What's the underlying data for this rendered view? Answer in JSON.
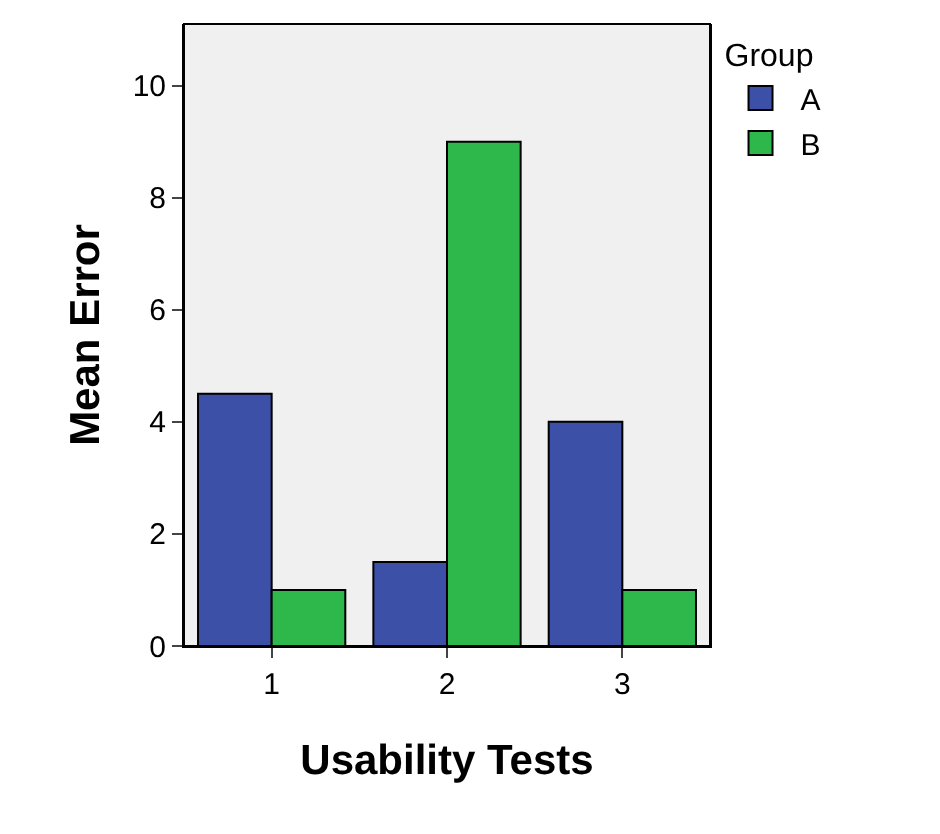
{
  "chart_data": {
    "type": "bar",
    "xlabel": "Usability Tests",
    "ylabel": "Mean Error",
    "legend_title": "Group",
    "categories": [
      "1",
      "2",
      "3"
    ],
    "series": [
      {
        "name": "A",
        "color": "#3c50a8",
        "values": [
          4.5,
          1.5,
          4
        ]
      },
      {
        "name": "B",
        "color": "#2eb84b",
        "values": [
          1,
          9,
          1
        ]
      }
    ],
    "ylim": [
      0,
      11.1
    ],
    "yticks": [
      0,
      2,
      4,
      6,
      8,
      10
    ],
    "grid": false,
    "legend": "top right"
  }
}
